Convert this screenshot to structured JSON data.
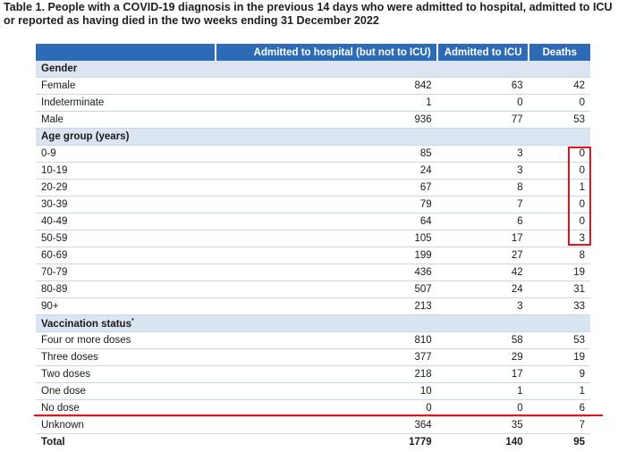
{
  "title": "Table 1. People with a COVID-19 diagnosis in the previous 14 days who were admitted to hospital, admitted to ICU or reported as having died in the two weeks ending 31 December 2022",
  "table": {
    "headers": [
      "",
      "Admitted to hospital (but not to ICU)",
      "Admitted to ICU",
      "Deaths"
    ],
    "gender": {
      "label": "Gender",
      "rows": [
        {
          "label": "Female",
          "hospital": "842",
          "icu": "63",
          "deaths": "42"
        },
        {
          "label": "Indeterminate",
          "hospital": "1",
          "icu": "0",
          "deaths": "0"
        },
        {
          "label": "Male",
          "hospital": "936",
          "icu": "77",
          "deaths": "53"
        }
      ]
    },
    "age": {
      "label": "Age group (years)",
      "rows": [
        {
          "label": "0-9",
          "hospital": "85",
          "icu": "3",
          "deaths": "0"
        },
        {
          "label": "10-19",
          "hospital": "24",
          "icu": "3",
          "deaths": "0"
        },
        {
          "label": "20-29",
          "hospital": "67",
          "icu": "8",
          "deaths": "1"
        },
        {
          "label": "30-39",
          "hospital": "79",
          "icu": "7",
          "deaths": "0"
        },
        {
          "label": "40-49",
          "hospital": "64",
          "icu": "6",
          "deaths": "0"
        },
        {
          "label": "50-59",
          "hospital": "105",
          "icu": "17",
          "deaths": "3"
        },
        {
          "label": "60-69",
          "hospital": "199",
          "icu": "27",
          "deaths": "8"
        },
        {
          "label": "70-79",
          "hospital": "436",
          "icu": "42",
          "deaths": "19"
        },
        {
          "label": "80-89",
          "hospital": "507",
          "icu": "24",
          "deaths": "31"
        },
        {
          "label": "90+",
          "hospital": "213",
          "icu": "3",
          "deaths": "33"
        }
      ]
    },
    "vaccination": {
      "label": "Vaccination status",
      "label_sup": "*",
      "rows": [
        {
          "label": "Four or more doses",
          "hospital": "810",
          "icu": "58",
          "deaths": "53"
        },
        {
          "label": "Three doses",
          "hospital": "377",
          "icu": "29",
          "deaths": "19"
        },
        {
          "label": "Two doses",
          "hospital": "218",
          "icu": "17",
          "deaths": "9"
        },
        {
          "label": "One dose",
          "hospital": "10",
          "icu": "1",
          "deaths": "1"
        },
        {
          "label": "No dose",
          "hospital": "0",
          "icu": "0",
          "deaths": "6"
        },
        {
          "label": "Unknown",
          "hospital": "364",
          "icu": "35",
          "deaths": "7"
        }
      ]
    },
    "total": {
      "label": "Total",
      "hospital": "1779",
      "icu": "140",
      "deaths": "95"
    }
  },
  "annotation_color": "#e0141e",
  "header_color": "#2e6bb6",
  "section_color": "#dbe5f2"
}
